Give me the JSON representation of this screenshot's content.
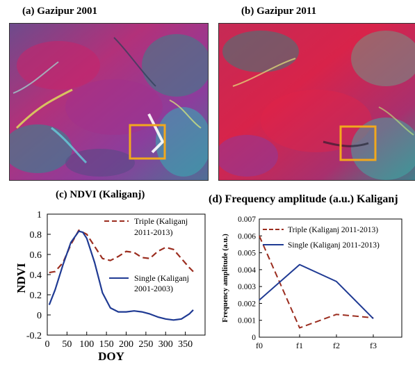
{
  "panels": {
    "a": {
      "title": "(a) Gazipur 2001"
    },
    "b": {
      "title": "(b) Gazipur 2011"
    },
    "c": {
      "title": "(c) NDVI (Kaliganj)"
    },
    "d": {
      "title": "(d) Frequency amplitude (a.u.) Kaliganj"
    }
  },
  "colors": {
    "highlight_box": "#f2a81d",
    "triple": "#9b2d1f",
    "single": "#1f3a93"
  },
  "chart_data": [
    {
      "type": "line",
      "xlabel": "DOY",
      "ylabel": "NDVI",
      "xlim": [
        0,
        400
      ],
      "ylim": [
        -0.2,
        1
      ],
      "xticks": [
        0,
        50,
        100,
        150,
        200,
        250,
        300,
        350
      ],
      "yticks": [
        -0.2,
        0,
        0.2,
        0.4,
        0.6,
        0.8,
        1
      ],
      "ytick_labels": [
        "-0.2",
        "0",
        "0.2",
        "0.4",
        "0.6",
        "0.8",
        "1"
      ],
      "grid": false,
      "series": [
        {
          "name": "Triple (Kaliganj 2011-2013)",
          "legend_lines": [
            "Triple (Kaliganj",
            "2011-2013)"
          ],
          "style": "dashed",
          "x": [
            5,
            20,
            40,
            60,
            80,
            100,
            120,
            140,
            160,
            180,
            200,
            220,
            240,
            260,
            280,
            300,
            320,
            340,
            360,
            370
          ],
          "y": [
            0.42,
            0.43,
            0.52,
            0.7,
            0.84,
            0.8,
            0.68,
            0.56,
            0.54,
            0.58,
            0.63,
            0.62,
            0.57,
            0.56,
            0.63,
            0.67,
            0.65,
            0.56,
            0.47,
            0.43
          ]
        },
        {
          "name": "Single (Kaliganj 2001-2003)",
          "legend_lines": [
            "Single (Kaliganj",
            "2001-2003)"
          ],
          "style": "solid",
          "x": [
            5,
            20,
            40,
            60,
            80,
            90,
            100,
            120,
            140,
            160,
            180,
            200,
            220,
            240,
            260,
            280,
            300,
            320,
            340,
            360,
            370
          ],
          "y": [
            0.1,
            0.25,
            0.5,
            0.72,
            0.83,
            0.82,
            0.76,
            0.52,
            0.22,
            0.07,
            0.03,
            0.03,
            0.04,
            0.03,
            0.01,
            -0.02,
            -0.04,
            -0.05,
            -0.04,
            0.01,
            0.05
          ]
        }
      ]
    },
    {
      "type": "line",
      "xlabel": "",
      "ylabel": "Frequency amplitude (a.u.)",
      "categories": [
        "f0",
        "f1",
        "f2",
        "f3"
      ],
      "ylim": [
        0,
        0.007
      ],
      "yticks": [
        0,
        0.001,
        0.002,
        0.003,
        0.004,
        0.005,
        0.006,
        0.007
      ],
      "ytick_labels": [
        "0",
        "0.001",
        "0.002",
        "0.003",
        "0.004",
        "0.005",
        "0.006",
        "0.007"
      ],
      "grid": false,
      "series": [
        {
          "name": "Triple (Kaliganj 2011-2013)",
          "style": "dashed",
          "values": [
            0.006,
            0.00055,
            0.00135,
            0.00115
          ]
        },
        {
          "name": "Single (Kaliganj 2011-2013)",
          "style": "solid",
          "values": [
            0.0022,
            0.0043,
            0.0033,
            0.0011
          ]
        }
      ]
    }
  ]
}
